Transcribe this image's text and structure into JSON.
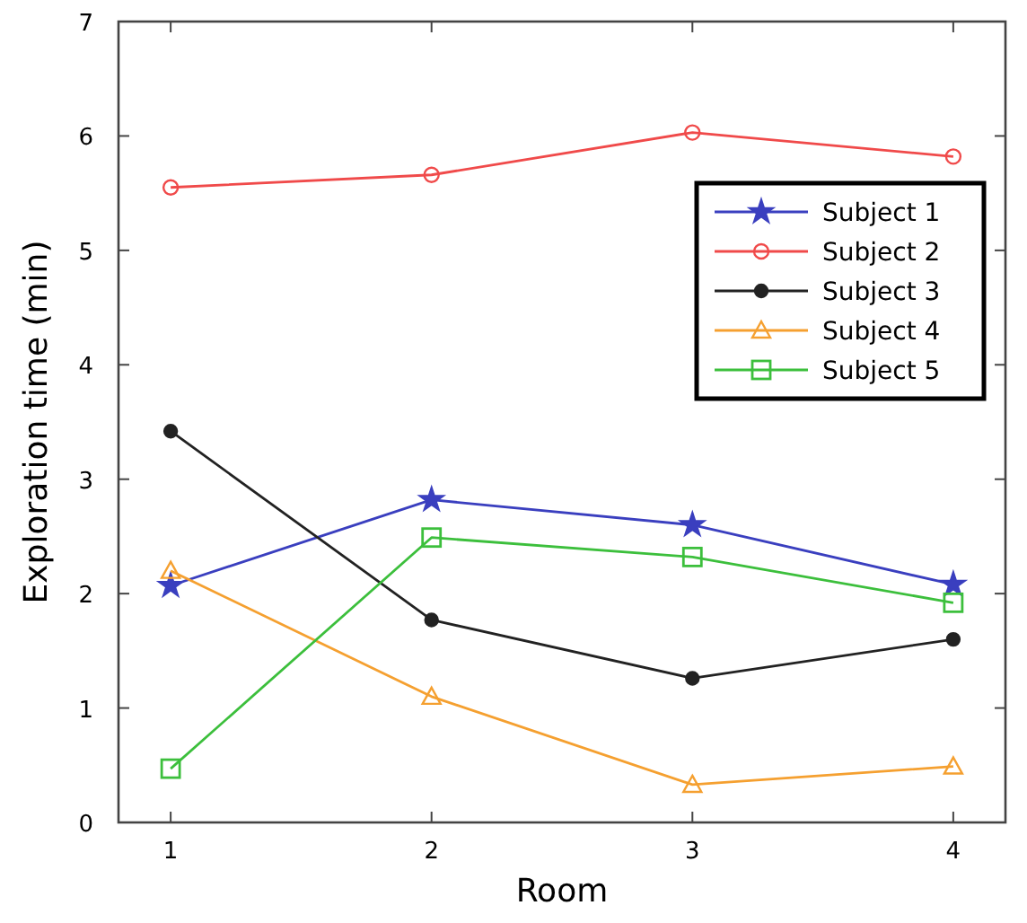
{
  "chart_data": {
    "type": "line",
    "xlabel": "Room",
    "ylabel": "Exploration time (min)",
    "x": [
      1,
      2,
      3,
      4
    ],
    "xlim": [
      0.8,
      4.2
    ],
    "xticks": [
      1,
      2,
      3,
      4
    ],
    "ylim": [
      0,
      7
    ],
    "yticks": [
      0,
      1,
      2,
      3,
      4,
      5,
      6,
      7
    ],
    "grid": false,
    "legend": "right",
    "series": [
      {
        "name": "Subject 1",
        "color": "#3a3fbf",
        "marker": "star",
        "values": [
          2.07,
          2.82,
          2.6,
          2.08
        ]
      },
      {
        "name": "Subject 2",
        "color": "#f04a4a",
        "marker": "circle",
        "values": [
          5.55,
          5.66,
          6.03,
          5.82
        ]
      },
      {
        "name": "Subject 3",
        "color": "#222222",
        "marker": "circle",
        "values": [
          3.42,
          1.77,
          1.26,
          1.6
        ]
      },
      {
        "name": "Subject 4",
        "color": "#f5a030",
        "marker": "triangle",
        "values": [
          2.2,
          1.1,
          0.33,
          0.49
        ]
      },
      {
        "name": "Subject 5",
        "color": "#3cbf3c",
        "marker": "square",
        "values": [
          0.47,
          2.49,
          2.32,
          1.92
        ]
      }
    ]
  }
}
